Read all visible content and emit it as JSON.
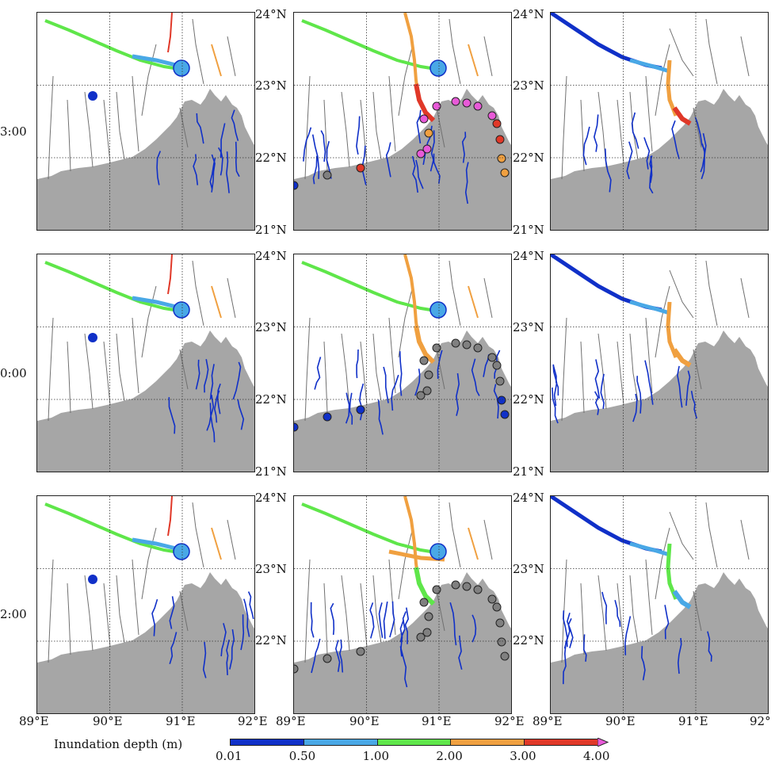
{
  "figure": {
    "row_labels": [
      "3:00",
      "0:00",
      "2:00"
    ],
    "lat_labels": [
      "24°N",
      "23°N",
      "22°N",
      "21°N"
    ],
    "lon_labels": [
      "89°E",
      "90°E",
      "91°E",
      "92°E"
    ],
    "lon_labels_last": [
      "89°E",
      "90°E",
      "91°E",
      "92°"
    ]
  },
  "colorbar": {
    "title": "Inundation depth (m)",
    "ticks": [
      "0.01",
      "0.50",
      "1.00",
      "2.00",
      "3.00",
      "4.00"
    ],
    "colors": [
      "#1030c8",
      "#49a8e6",
      "#5fe64a",
      "#f0a040",
      "#e03828",
      "#e85ad8"
    ]
  },
  "colors": {
    "land": "#a6a6a6",
    "river_line": "#707070",
    "grid": "#333333"
  },
  "station_colors": {
    "row1": [
      "#1030c8",
      "#808080",
      "#e03828",
      "#e85ad8",
      "#e85ad8",
      "#f0a040",
      "#e85ad8",
      "#e85ad8",
      "#e85ad8",
      "#e85ad8",
      "#e85ad8",
      "#e85ad8",
      "#e03828",
      "#e03828",
      "#f0a040",
      "#f0a040"
    ],
    "row2": [
      "#1030c8",
      "#1030c8",
      "#1030c8",
      "#808080",
      "#808080",
      "#808080",
      "#808080",
      "#808080",
      "#808080",
      "#808080",
      "#808080",
      "#808080",
      "#808080",
      "#808080",
      "#1030c8",
      "#1030c8"
    ],
    "row3": [
      "#808080",
      "#808080",
      "#808080",
      "#808080",
      "#808080",
      "#808080",
      "#808080",
      "#808080",
      "#808080",
      "#808080",
      "#808080",
      "#808080",
      "#808080",
      "#808080",
      "#808080",
      "#808080"
    ]
  }
}
